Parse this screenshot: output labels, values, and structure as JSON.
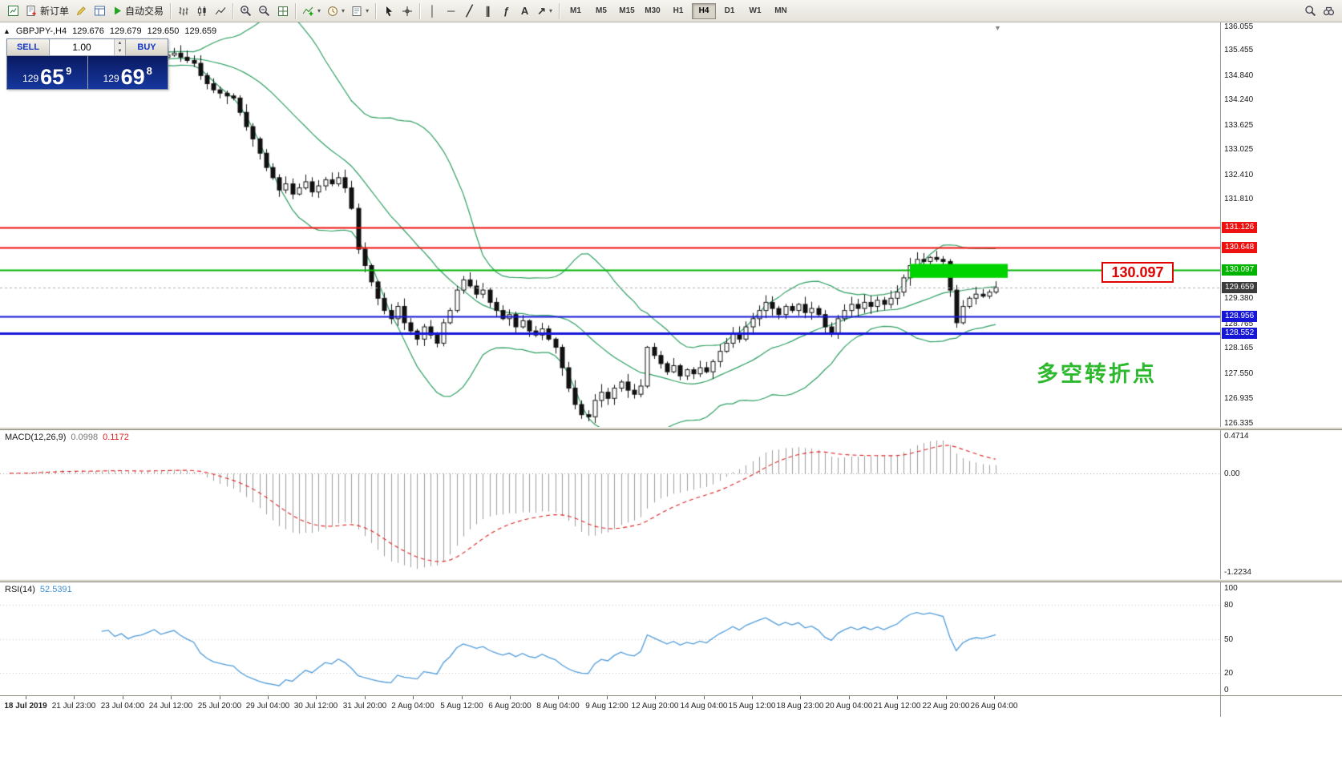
{
  "toolbar": {
    "items": [
      {
        "name": "new-chart-button",
        "svg": "newchart"
      },
      {
        "name": "new-order-button",
        "svg": "neworder",
        "label": "新订单"
      },
      {
        "name": "metaeditor-button",
        "svg": "pencil"
      },
      {
        "name": "market-watch-button",
        "svg": "table"
      },
      {
        "name": "autotrading-button",
        "svg": "play",
        "label": "自动交易"
      },
      {
        "sep": true
      },
      {
        "name": "bar-chart-button",
        "svg": "bars"
      },
      {
        "name": "candle-chart-button",
        "svg": "candles"
      },
      {
        "name": "line-chart-button",
        "svg": "linechart"
      },
      {
        "sep": true
      },
      {
        "name": "zoom-in-button",
        "svg": "zoomin"
      },
      {
        "name": "zoom-out-button",
        "svg": "zoomout"
      },
      {
        "name": "tile-windows-button",
        "svg": "tile"
      },
      {
        "sep": true
      },
      {
        "name": "indicators-button",
        "svg": "indicators",
        "dropdown": true
      },
      {
        "name": "periods-button",
        "svg": "clock",
        "dropdown": true
      },
      {
        "name": "templates-button",
        "svg": "template",
        "dropdown": true
      },
      {
        "sep": true
      },
      {
        "name": "cursor-button",
        "svg": "cursor"
      },
      {
        "name": "crosshair-button",
        "svg": "crosshair"
      },
      {
        "sep": true
      },
      {
        "name": "vertical-line-button",
        "glyph": "│"
      },
      {
        "name": "horizontal-line-button",
        "glyph": "─"
      },
      {
        "name": "trendline-button",
        "glyph": "╱"
      },
      {
        "name": "channel-button",
        "glyph": "∥"
      },
      {
        "name": "fibonacci-button",
        "glyph": "ƒ"
      },
      {
        "name": "text-tool-button",
        "glyph": "A"
      },
      {
        "name": "arrows-tool-button",
        "glyph": "↗",
        "dropdown": true
      },
      {
        "sep": true
      },
      {
        "type": "timeframes"
      },
      {
        "name": "quick-search-button",
        "svg": "search",
        "right": true
      },
      {
        "name": "find-symbol-button",
        "svg": "binoculars"
      }
    ],
    "timeframes": [
      "M1",
      "M5",
      "M15",
      "M30",
      "H1",
      "H4",
      "D1",
      "W1",
      "MN"
    ],
    "active_timeframe": "H4"
  },
  "chart": {
    "collapse_icon": "▲",
    "shift_marker": "▼",
    "symbol_line": {
      "symbol_period": "GBPJPY-,H4",
      "open": "129.676",
      "high": "129.679",
      "low": "129.650",
      "close": "129.659"
    },
    "trade_panel": {
      "sell_label": "SELL",
      "buy_label": "BUY",
      "volume": "1.00",
      "sell_prefix": "129",
      "sell_big": "65",
      "sell_sup": "9",
      "buy_prefix": "129",
      "buy_big": "69",
      "buy_sup": "8"
    },
    "price_axis": {
      "plain_labels": [
        "136.055",
        "135.455",
        "134.840",
        "134.240",
        "133.625",
        "133.025",
        "132.410",
        "131.810",
        "129.995",
        "129.380",
        "128.765",
        "128.165",
        "127.550",
        "126.935",
        "126.335"
      ],
      "tags": [
        {
          "text": "131.126",
          "bg": "#ee1111"
        },
        {
          "text": "130.648",
          "bg": "#ee1111"
        },
        {
          "text": "130.097",
          "bg": "#00b400"
        },
        {
          "text": "129.659",
          "bg": "#3c3c3c"
        },
        {
          "text": "128.956",
          "bg": "#1616d6"
        },
        {
          "text": "128.552",
          "bg": "#1616d6"
        }
      ]
    },
    "annotation": {
      "text": "多空转折点",
      "color": "#2db92d"
    },
    "price_callout": "130.097",
    "highlight_box": {
      "x": 1135,
      "width": 122,
      "price_top": 130.24,
      "price_bottom": 129.9,
      "color": "#00d400"
    }
  },
  "macd": {
    "label": "MACD(12,26,9)",
    "value_main": "0.0998",
    "value_signal": "0.1172",
    "scale_top": "0.4714",
    "scale_zero": "0.00",
    "scale_bottom": "-1.2234"
  },
  "rsi": {
    "label": "RSI(14)",
    "value": "52.5391",
    "scale": [
      "100",
      "80",
      "50",
      "20",
      "0"
    ]
  },
  "time_axis": {
    "labels": [
      "18 Jul 2019",
      "21 Jul 23:00",
      "23 Jul 04:00",
      "24 Jul 12:00",
      "25 Jul 20:00",
      "29 Jul 04:00",
      "30 Jul 12:00",
      "31 Jul 20:00",
      "2 Aug 04:00",
      "5 Aug 12:00",
      "6 Aug 20:00",
      "8 Aug 04:00",
      "9 Aug 12:00",
      "12 Aug 20:00",
      "14 Aug 04:00",
      "15 Aug 12:00",
      "18 Aug 23:00",
      "20 Aug 04:00",
      "21 Aug 12:00",
      "22 Aug 20:00",
      "26 Aug 04:00"
    ]
  },
  "chart_data": {
    "type": "candlestick",
    "symbol": "GBPJPY-",
    "timeframe": "H4",
    "ohlc_current": {
      "open": 129.676,
      "high": 129.679,
      "low": 129.65,
      "close": 129.659
    },
    "last_price": 129.659,
    "ylim": [
      126.335,
      136.055
    ],
    "closes": [
      135.1,
      135.18,
      135.05,
      135.22,
      135.28,
      135.3,
      135.15,
      135.25,
      135.35,
      135.1,
      135.2,
      135.3,
      135.12,
      135.26,
      135.32,
      135.35,
      135.2,
      135.28,
      135.15,
      135.22,
      135.25,
      135.32,
      135.4,
      135.3,
      135.35,
      135.4,
      135.3,
      135.22,
      135.15,
      134.85,
      134.65,
      134.5,
      134.42,
      134.35,
      134.3,
      133.95,
      133.6,
      133.3,
      132.95,
      132.6,
      132.35,
      132.05,
      132.2,
      131.95,
      132.1,
      132.25,
      132.0,
      132.15,
      132.3,
      132.2,
      132.35,
      132.1,
      131.6,
      130.6,
      130.2,
      129.8,
      129.4,
      129.1,
      128.9,
      129.2,
      128.8,
      128.6,
      128.4,
      128.7,
      128.5,
      128.3,
      128.8,
      129.1,
      129.6,
      129.85,
      129.7,
      129.5,
      129.6,
      129.3,
      129.1,
      128.9,
      129.0,
      128.7,
      128.85,
      128.6,
      128.5,
      128.65,
      128.4,
      128.2,
      127.7,
      127.2,
      126.8,
      126.55,
      126.5,
      126.9,
      127.1,
      126.95,
      127.2,
      127.35,
      127.15,
      127.05,
      127.25,
      128.2,
      128.0,
      127.8,
      127.6,
      127.75,
      127.5,
      127.65,
      127.55,
      127.7,
      127.6,
      127.85,
      128.1,
      128.3,
      128.55,
      128.4,
      128.7,
      128.9,
      129.1,
      129.3,
      129.15,
      129.0,
      129.2,
      129.1,
      129.25,
      129.05,
      129.15,
      129.0,
      128.7,
      128.55,
      128.9,
      129.1,
      129.25,
      129.15,
      129.3,
      129.2,
      129.35,
      129.25,
      129.4,
      129.55,
      129.9,
      130.2,
      130.35,
      130.3,
      130.4,
      130.35,
      130.3,
      129.6,
      128.8,
      129.2,
      129.4,
      129.5,
      129.45,
      129.55,
      129.659
    ],
    "bands": {
      "name": "Bollinger Bands",
      "period": 20,
      "deviation": 2,
      "color": "#2e9e62"
    },
    "horizontal_lines": [
      {
        "price": 131.126,
        "color": "#ee1111",
        "width": 2
      },
      {
        "price": 130.648,
        "color": "#ee1111",
        "width": 2
      },
      {
        "price": 130.097,
        "color": "#00b400",
        "width": 2
      },
      {
        "price": 128.956,
        "color": "#1616d6",
        "width": 2
      },
      {
        "price": 128.552,
        "color": "#1616d6",
        "width": 3
      }
    ],
    "macd": {
      "params": [
        12,
        26,
        9
      ],
      "current": [
        0.0998,
        0.1172
      ]
    },
    "rsi": {
      "period": 14,
      "current": 52.5391
    }
  }
}
